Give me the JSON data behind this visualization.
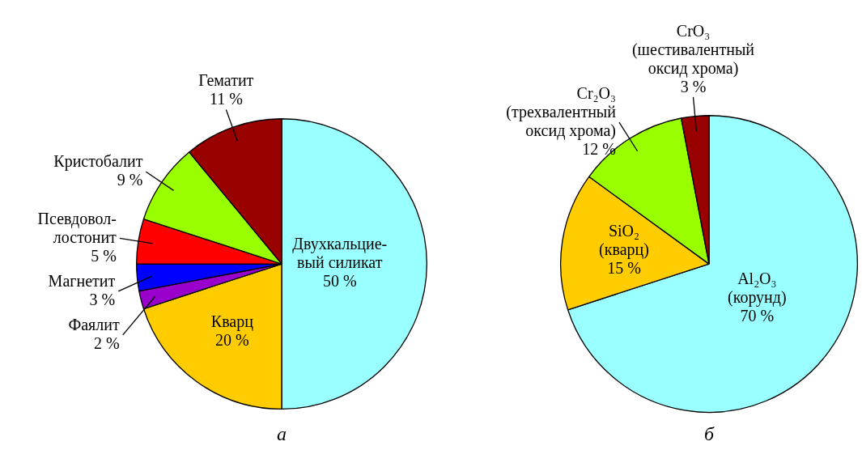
{
  "chart_data": [
    {
      "type": "pie",
      "title": "а",
      "categories": [
        "Двухкальцие-\nвый силикат",
        "Кварц",
        "Фаялит",
        "Магнетит",
        "Псевдовол-\nлостонит",
        "Кристобалит",
        "Гематит"
      ],
      "values": [
        50,
        20,
        2,
        3,
        5,
        9,
        11
      ],
      "value_labels": [
        "50 %",
        "20 %",
        "2 %",
        "3 %",
        "5 %",
        "9 %",
        "11 %"
      ],
      "colors": [
        "#99ffff",
        "#ffcc00",
        "#9900cc",
        "#0000ff",
        "#ff0000",
        "#99ff00",
        "#990000"
      ],
      "legend": false
    },
    {
      "type": "pie",
      "title": "б",
      "categories": [
        "Al₂O₃\n(корунд)",
        "SiO₂\n(кварц)",
        "Cr₂O₃\n(трехвалентный\nоксид хрома)",
        "CrO₃\n(шестивалентный\nоксид хрома)"
      ],
      "values": [
        70,
        15,
        12,
        3
      ],
      "value_labels": [
        "70 %",
        "15 %",
        "12 %",
        "3 %"
      ],
      "colors": [
        "#99ffff",
        "#ffcc00",
        "#99ff00",
        "#990000"
      ],
      "legend": false
    }
  ]
}
